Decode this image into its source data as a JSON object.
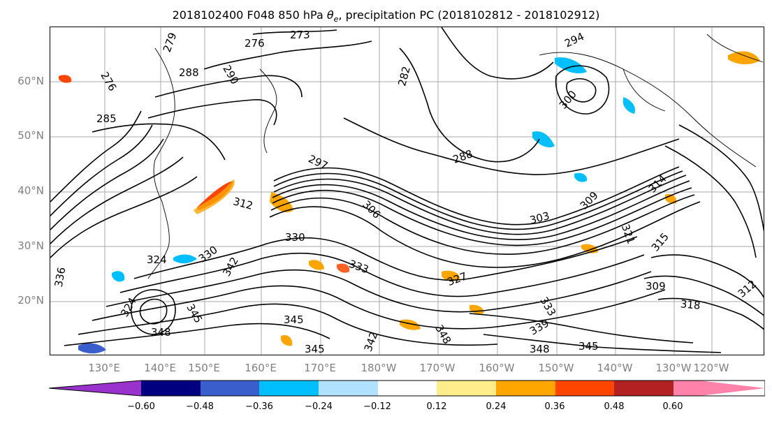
{
  "title": {
    "prefix": "2018102400 F048 850 hPa ",
    "theta": "θ",
    "theta_sub": "e",
    "suffix": ", precipitation PC (2018102812 - 2018102912)"
  },
  "lat_labels": [
    "60°N",
    "50°N",
    "40°N",
    "30°N",
    "20°N"
  ],
  "lon_labels": [
    "130°E",
    "140°E",
    "150°E",
    "160°E",
    "170°E",
    "180°W",
    "170°W",
    "160°W",
    "150°W",
    "140°W",
    "130°W",
    "120°W"
  ],
  "contour_labels": [
    "273",
    "276",
    "279",
    "276",
    "288",
    "290",
    "282",
    "294",
    "300",
    "285",
    "288",
    "297",
    "312",
    "306",
    "303",
    "309",
    "314",
    "321",
    "315",
    "330",
    "330",
    "324",
    "333",
    "327",
    "342",
    "336",
    "324",
    "345",
    "348",
    "345",
    "345",
    "342",
    "348",
    "339",
    "333",
    "348",
    "345",
    "309",
    "318",
    "312"
  ],
  "colorbar": {
    "ticks": [
      "−0.60",
      "−0.48",
      "−0.36",
      "−0.24",
      "−0.12",
      "0.12",
      "0.24",
      "0.36",
      "0.48",
      "0.60"
    ],
    "bins": [
      -0.72,
      -0.6,
      -0.48,
      -0.36,
      -0.24,
      -0.12,
      0.12,
      0.24,
      0.36,
      0.48,
      0.6,
      0.72
    ],
    "colors": [
      "#9932CC",
      "#000080",
      "#3A5FCD",
      "#00BFFF",
      "#B0E2FF",
      "#FFFFFF",
      "#FFEC8B",
      "#FFA500",
      "#FF4500",
      "#B22222",
      "#FF82AB"
    ]
  }
}
